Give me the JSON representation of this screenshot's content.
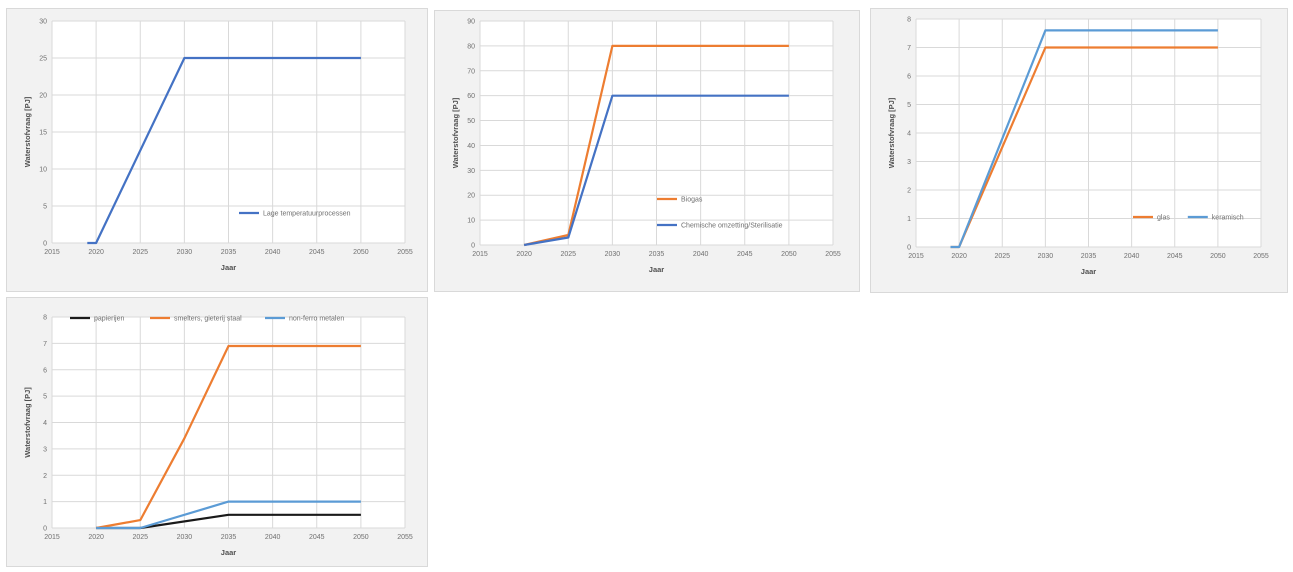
{
  "chart_data": [
    {
      "type": "line",
      "xlabel": "Jaar",
      "ylabel": "Waterstofvraag [PJ]",
      "xlim": [
        2015,
        2055
      ],
      "ylim": [
        0,
        30
      ],
      "xticks": [
        "2015",
        "2020",
        "2025",
        "2030",
        "2035",
        "2040",
        "2045",
        "2050",
        "2055"
      ],
      "yticks": [
        "0",
        "5",
        "10",
        "15",
        "20",
        "25",
        "30"
      ],
      "legend": "bottom-right",
      "grid": true,
      "series": [
        {
          "name": "Lage temperatuurprocessen",
          "color": "#4472c4",
          "x": [
            2019,
            2020,
            2030,
            2050
          ],
          "y": [
            0,
            0,
            25,
            25
          ]
        }
      ]
    },
    {
      "type": "line",
      "xlabel": "Jaar",
      "ylabel": "Waterstofvraag [PJ]",
      "xlim": [
        2015,
        2055
      ],
      "ylim": [
        0,
        90
      ],
      "xticks": [
        "2015",
        "2020",
        "2025",
        "2030",
        "2035",
        "2040",
        "2045",
        "2050",
        "2055"
      ],
      "yticks": [
        "0",
        "10",
        "20",
        "30",
        "40",
        "50",
        "60",
        "70",
        "80",
        "90"
      ],
      "legend": "bottom-right",
      "grid": true,
      "series": [
        {
          "name": "Biogas",
          "color": "#ed7d31",
          "x": [
            2020,
            2025,
            2030,
            2050
          ],
          "y": [
            0,
            4,
            80,
            80
          ]
        },
        {
          "name": "Chemische omzetting/Sterilisatie",
          "color": "#4472c4",
          "x": [
            2020,
            2025,
            2030,
            2050
          ],
          "y": [
            0,
            3,
            60,
            60
          ]
        }
      ]
    },
    {
      "type": "line",
      "xlabel": "Jaar",
      "ylabel": "Waterstofvraag [PJ]",
      "xlim": [
        2015,
        2055
      ],
      "ylim": [
        0,
        8
      ],
      "xticks": [
        "2015",
        "2020",
        "2025",
        "2030",
        "2035",
        "2040",
        "2045",
        "2050",
        "2055"
      ],
      "yticks": [
        "0",
        "1",
        "2",
        "3",
        "4",
        "5",
        "6",
        "7",
        "8"
      ],
      "legend": "bottom-right",
      "grid": true,
      "series": [
        {
          "name": "glas",
          "color": "#ed7d31",
          "x": [
            2019,
            2020,
            2030,
            2050
          ],
          "y": [
            0,
            0,
            7,
            7
          ]
        },
        {
          "name": "keramisch",
          "color": "#5b9bd5",
          "x": [
            2019,
            2020,
            2030,
            2050
          ],
          "y": [
            0,
            0,
            7.6,
            7.6
          ]
        }
      ]
    },
    {
      "type": "line",
      "xlabel": "Jaar",
      "ylabel": "Waterstofvraag [PJ]",
      "xlim": [
        2015,
        2055
      ],
      "ylim": [
        0,
        8
      ],
      "xticks": [
        "2015",
        "2020",
        "2025",
        "2030",
        "2035",
        "2040",
        "2045",
        "2050",
        "2055"
      ],
      "yticks": [
        "0",
        "1",
        "2",
        "3",
        "4",
        "5",
        "6",
        "7",
        "8"
      ],
      "legend": "top",
      "grid": true,
      "series": [
        {
          "name": "papierijen",
          "color": "#1a1a1a",
          "x": [
            2020,
            2025,
            2035,
            2050
          ],
          "y": [
            0,
            0,
            0.5,
            0.5
          ]
        },
        {
          "name": "smelters, gieterij staal",
          "color": "#ed7d31",
          "x": [
            2020,
            2025,
            2030,
            2035,
            2050
          ],
          "y": [
            0,
            0.3,
            3.4,
            6.9,
            6.9
          ]
        },
        {
          "name": "non-ferro metalen",
          "color": "#5b9bd5",
          "x": [
            2020,
            2025,
            2035,
            2050
          ],
          "y": [
            0,
            0,
            1,
            1
          ]
        }
      ]
    }
  ]
}
